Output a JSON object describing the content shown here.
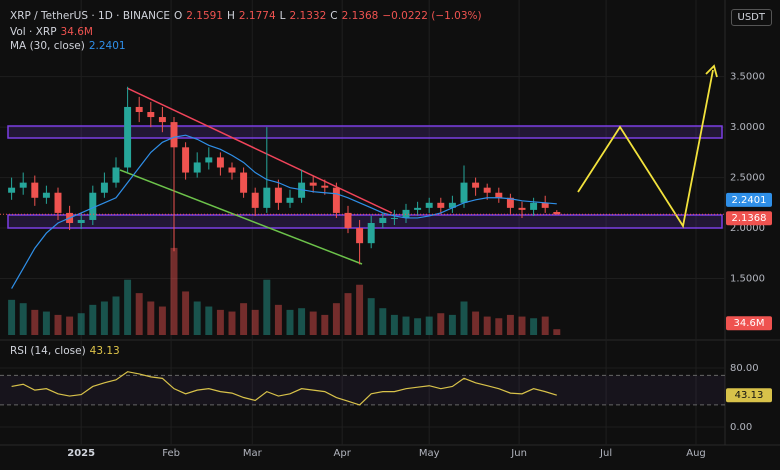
{
  "chart_data": {
    "type": "candlestick",
    "title": "XRP / TetherUS · 1D · BINANCE",
    "currency": "USDT",
    "ohlc_labels": [
      "O",
      "H",
      "L",
      "C"
    ],
    "change_label": "−0.0222 (−1.03%)",
    "up_color": "#26a69a",
    "down_color": "#ef5350",
    "x": [
      -24,
      -20,
      -16,
      -12,
      -8,
      -4,
      0,
      4,
      8,
      12,
      16,
      20,
      24,
      28,
      32,
      36,
      40,
      44,
      48,
      52,
      56,
      60,
      64,
      68,
      72,
      76,
      80,
      84,
      88,
      92,
      96,
      100,
      104,
      108,
      112,
      116,
      120,
      124,
      128,
      132,
      136,
      140,
      144,
      148,
      152,
      156,
      160,
      164
    ],
    "open": [
      2.35,
      2.4,
      2.45,
      2.3,
      2.35,
      2.15,
      2.05,
      2.08,
      2.35,
      2.45,
      2.6,
      3.2,
      3.15,
      3.1,
      3.05,
      2.8,
      2.55,
      2.65,
      2.7,
      2.6,
      2.55,
      2.35,
      2.2,
      2.4,
      2.25,
      2.3,
      2.45,
      2.42,
      2.4,
      2.15,
      2.0,
      1.85,
      2.05,
      2.1,
      2.1,
      2.18,
      2.2,
      2.25,
      2.2,
      2.25,
      2.45,
      2.4,
      2.35,
      2.3,
      2.2,
      2.18,
      2.25,
      2.1591
    ],
    "high": [
      2.5,
      2.55,
      2.52,
      2.42,
      2.4,
      2.22,
      2.15,
      2.42,
      2.55,
      2.7,
      3.4,
      3.3,
      3.25,
      3.2,
      3.1,
      2.85,
      2.75,
      2.8,
      2.75,
      2.65,
      2.6,
      2.4,
      3.0,
      2.48,
      2.38,
      2.58,
      2.52,
      2.48,
      2.45,
      2.22,
      2.08,
      2.12,
      2.15,
      2.18,
      2.24,
      2.26,
      2.3,
      2.3,
      2.32,
      2.62,
      2.5,
      2.44,
      2.4,
      2.34,
      2.26,
      2.3,
      2.32,
      2.1774
    ],
    "low": [
      2.28,
      2.33,
      2.22,
      2.24,
      2.08,
      1.98,
      1.99,
      2.03,
      2.3,
      2.4,
      2.55,
      3.05,
      3.0,
      2.95,
      1.77,
      2.48,
      2.5,
      2.58,
      2.52,
      2.48,
      2.3,
      2.12,
      2.15,
      2.18,
      2.2,
      2.25,
      2.35,
      2.33,
      2.1,
      1.95,
      1.64,
      1.8,
      2.0,
      2.03,
      2.05,
      2.12,
      2.15,
      2.14,
      2.15,
      2.2,
      2.32,
      2.28,
      2.25,
      2.14,
      2.1,
      2.12,
      2.15,
      2.1332
    ],
    "close": [
      2.4,
      2.45,
      2.3,
      2.35,
      2.15,
      2.05,
      2.08,
      2.35,
      2.45,
      2.6,
      3.2,
      3.15,
      3.1,
      3.05,
      2.8,
      2.55,
      2.65,
      2.7,
      2.6,
      2.55,
      2.35,
      2.2,
      2.4,
      2.25,
      2.3,
      2.45,
      2.42,
      2.4,
      2.15,
      2.0,
      1.85,
      2.05,
      2.1,
      2.1,
      2.18,
      2.2,
      2.25,
      2.2,
      2.25,
      2.45,
      2.4,
      2.35,
      2.3,
      2.2,
      2.18,
      2.25,
      2.2,
      2.1368
    ],
    "xlim": [
      -28,
      222
    ],
    "xticks": [
      {
        "value": 0,
        "label": "2025"
      },
      {
        "value": 31,
        "label": "Feb"
      },
      {
        "value": 59,
        "label": "Mar"
      },
      {
        "value": 90,
        "label": "Apr"
      },
      {
        "value": 120,
        "label": "May"
      },
      {
        "value": 151,
        "label": "Jun"
      },
      {
        "value": 181,
        "label": "Jul"
      },
      {
        "value": 212,
        "label": "Aug"
      }
    ],
    "ylim": [
      0.94,
      4.26
    ],
    "yticks": [
      {
        "value": 1.5,
        "label": "1.5000"
      },
      {
        "value": 2,
        "label": "2.0000"
      },
      {
        "value": 2.5,
        "label": "2.5000"
      },
      {
        "value": 3,
        "label": "3.0000"
      },
      {
        "value": 3.5,
        "label": "3.5000"
      }
    ],
    "grid": true,
    "ma": {
      "name": "MA (30, close)",
      "color": "#2f8fe8",
      "values": [
        1.4,
        1.6,
        1.8,
        1.95,
        2.05,
        2.1,
        2.15,
        2.2,
        2.25,
        2.3,
        2.45,
        2.6,
        2.75,
        2.85,
        2.9,
        2.92,
        2.88,
        2.82,
        2.78,
        2.72,
        2.65,
        2.55,
        2.48,
        2.45,
        2.4,
        2.38,
        2.36,
        2.35,
        2.34,
        2.3,
        2.25,
        2.2,
        2.15,
        2.12,
        2.1,
        2.1,
        2.12,
        2.15,
        2.2,
        2.25,
        2.28,
        2.3,
        2.3,
        2.29,
        2.27,
        2.26,
        2.25,
        2.2401
      ]
    },
    "volume": {
      "name": "Vol · XRP",
      "last_label": "34.6M",
      "ylim": [
        0,
        2000
      ],
      "values": [
        210,
        190,
        150,
        140,
        120,
        110,
        130,
        180,
        200,
        230,
        330,
        250,
        200,
        170,
        520,
        260,
        200,
        170,
        150,
        140,
        190,
        150,
        330,
        180,
        150,
        160,
        140,
        120,
        190,
        250,
        300,
        220,
        160,
        120,
        110,
        100,
        110,
        130,
        120,
        200,
        140,
        110,
        100,
        120,
        110,
        100,
        110,
        34.6
      ]
    },
    "rsi": {
      "name": "RSI (14, close)",
      "color": "#d8c24a",
      "ylim": [
        -24.4,
        115.3
      ],
      "yticks": [
        {
          "value": 0,
          "label": "0.00"
        },
        {
          "value": 80,
          "label": "80.00"
        }
      ],
      "bands": [
        70,
        30
      ],
      "values": [
        55,
        58,
        50,
        52,
        45,
        42,
        44,
        55,
        60,
        64,
        75,
        72,
        68,
        66,
        52,
        45,
        50,
        52,
        48,
        46,
        40,
        36,
        48,
        42,
        45,
        52,
        50,
        48,
        40,
        35,
        30,
        45,
        48,
        48,
        52,
        54,
        56,
        52,
        55,
        66,
        60,
        56,
        52,
        46,
        45,
        52,
        48,
        43.13
      ]
    }
  }
}
